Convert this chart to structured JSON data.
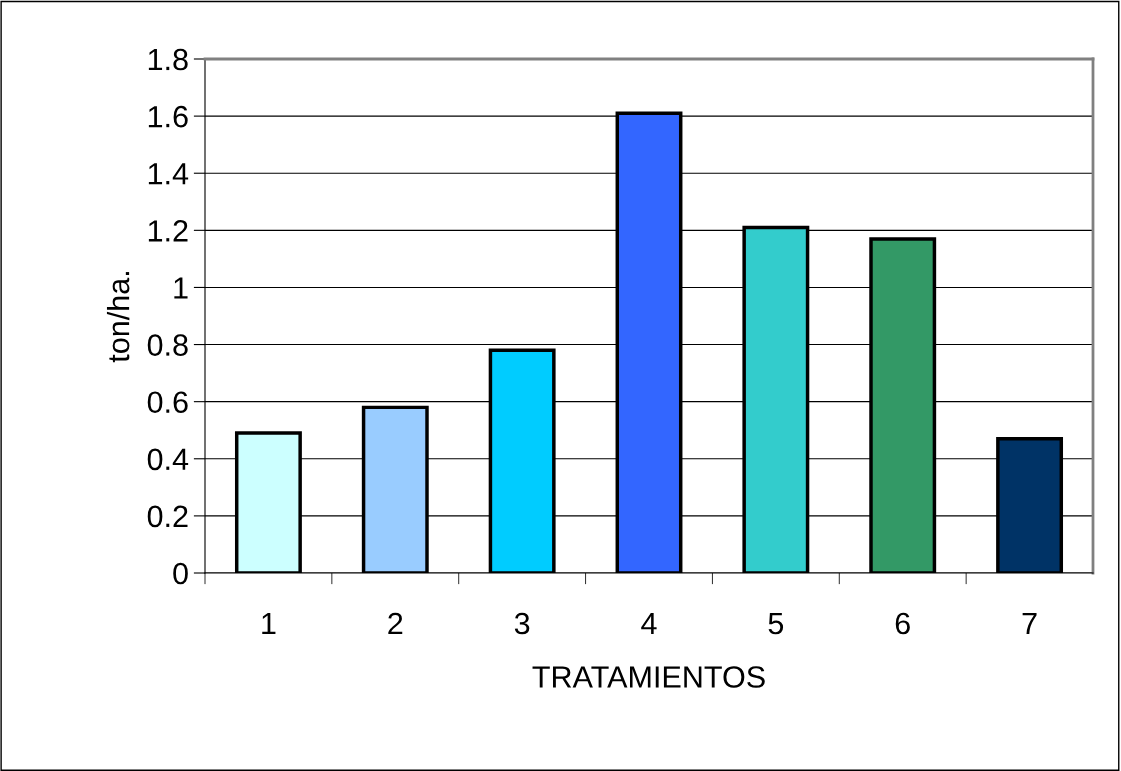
{
  "chart_data": {
    "type": "bar",
    "xlabel": "TRATAMIENTOS",
    "ylabel": "ton/ha.",
    "categories": [
      "1",
      "2",
      "3",
      "4",
      "5",
      "6",
      "7"
    ],
    "values": [
      0.49,
      0.58,
      0.78,
      1.61,
      1.21,
      1.17,
      0.47
    ],
    "colors": [
      "#ccffff",
      "#99ccff",
      "#00ccff",
      "#3366ff",
      "#33cccc",
      "#339966",
      "#003366"
    ],
    "ylim": [
      0,
      1.8
    ],
    "yticks": [
      0,
      0.2,
      0.4,
      0.6,
      0.8,
      1,
      1.2,
      1.4,
      1.6,
      1.8
    ],
    "grid": "y",
    "legend": false
  }
}
